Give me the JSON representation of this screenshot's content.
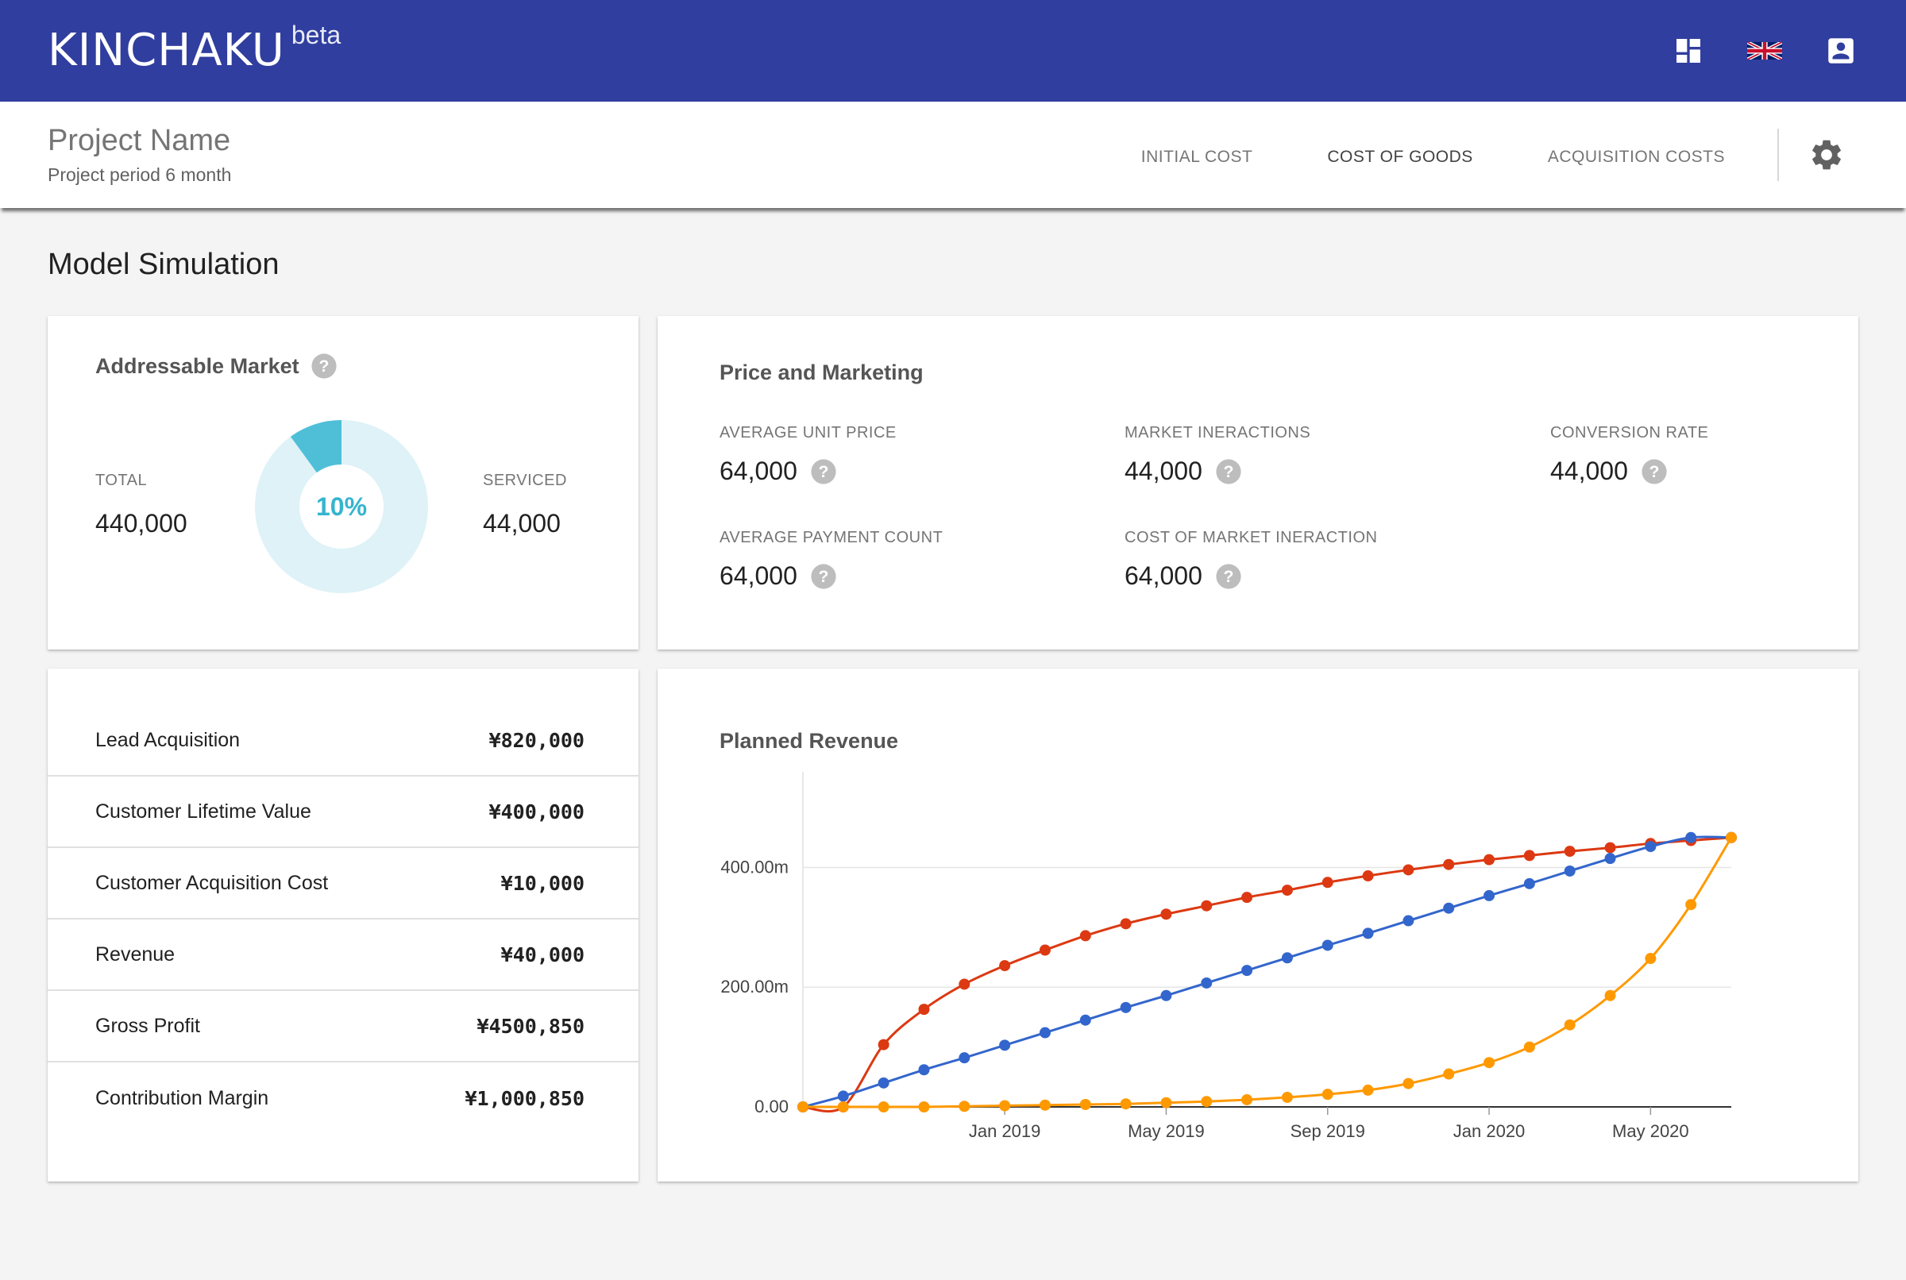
{
  "app": {
    "name": "KINCHAKU",
    "badge": "beta",
    "icons": [
      "dashboard-icon",
      "uk-flag-icon",
      "account-box-icon"
    ]
  },
  "project": {
    "name": "Project Name",
    "period": "Project period 6 month"
  },
  "tabs": [
    {
      "label": "INITIAL COST",
      "active": false
    },
    {
      "label": "COST OF GOODS",
      "active": true
    },
    {
      "label": "ACQUISITION COSTS",
      "active": false
    }
  ],
  "page": {
    "title": "Model Simulation"
  },
  "addressable_market": {
    "title": "Addressable Market",
    "total_label": "TOTAL",
    "total_value": "440,000",
    "serviced_label": "SERVICED",
    "serviced_value": "44,000",
    "percent_label": "10%",
    "percent": 10,
    "colors": {
      "filled": "#4fbfd8",
      "remaining": "#def2f7",
      "text": "#35b5cf"
    }
  },
  "price_marketing": {
    "title": "Price and Marketing",
    "items": [
      {
        "label": "AVERAGE UNIT PRICE",
        "value": "64,000"
      },
      {
        "label": "MARKET INERACTIONS",
        "value": "44,000"
      },
      {
        "label": "CONVERSION RATE",
        "value": "44,000"
      },
      {
        "label": "AVERAGE PAYMENT COUNT",
        "value": "64,000"
      },
      {
        "label": "COST OF MARKET INERACTION",
        "value": "64,000"
      }
    ]
  },
  "metrics": [
    {
      "label": "Lead Acquisition",
      "value": "¥820,000"
    },
    {
      "label": "Customer Lifetime Value",
      "value": "¥400,000"
    },
    {
      "label": "Customer Acquisition Cost",
      "value": "¥10,000"
    },
    {
      "label": "Revenue",
      "value": "¥40,000"
    },
    {
      "label": "Gross Profit",
      "value": "¥4500,850"
    },
    {
      "label": "Contribution Margin",
      "value": "¥1,000,850"
    }
  ],
  "chart_data": {
    "type": "line",
    "title": "Planned Revenue",
    "x": [
      "2018-08",
      "2018-09",
      "2018-10",
      "2018-11",
      "2018-12",
      "2019-01",
      "2019-02",
      "2019-03",
      "2019-04",
      "2019-05",
      "2019-06",
      "2019-07",
      "2019-08",
      "2019-09",
      "2019-10",
      "2019-11",
      "2019-12",
      "2020-01",
      "2020-02",
      "2020-03",
      "2020-04",
      "2020-05",
      "2020-06",
      "2020-07"
    ],
    "x_tick_labels": [
      "Jan 2019",
      "May 2019",
      "Sep 2019",
      "Jan 2020",
      "May 2020"
    ],
    "x_tick_positions": [
      "2019-01",
      "2019-05",
      "2019-09",
      "2020-01",
      "2020-05"
    ],
    "y_tick_labels": [
      "0.00",
      "200.00m",
      "400.00m"
    ],
    "y_tick_values": [
      0,
      0.2,
      0.4
    ],
    "ylim": [
      0,
      0.52
    ],
    "grid": true,
    "series": [
      {
        "color": "#dc3912",
        "values": [
          0,
          0,
          0.104,
          0.163,
          0.205,
          0.236,
          0.262,
          0.286,
          0.306,
          0.322,
          0.336,
          0.35,
          0.362,
          0.375,
          0.386,
          0.396,
          0.405,
          0.413,
          0.42,
          0.427,
          0.433,
          0.44,
          0.445,
          0.45
        ]
      },
      {
        "color": "#3366cc",
        "values": [
          0,
          0.018,
          0.04,
          0.062,
          0.082,
          0.103,
          0.124,
          0.145,
          0.166,
          0.186,
          0.207,
          0.228,
          0.249,
          0.27,
          0.29,
          0.311,
          0.332,
          0.353,
          0.373,
          0.394,
          0.415,
          0.435,
          0.45,
          0.45
        ]
      },
      {
        "color": "#ff9900",
        "values": [
          0,
          0,
          0,
          0,
          0.001,
          0.002,
          0.003,
          0.004,
          0.005,
          0.007,
          0.009,
          0.012,
          0.016,
          0.021,
          0.028,
          0.039,
          0.055,
          0.074,
          0.1,
          0.137,
          0.186,
          0.248,
          0.338,
          0.45
        ]
      }
    ]
  }
}
